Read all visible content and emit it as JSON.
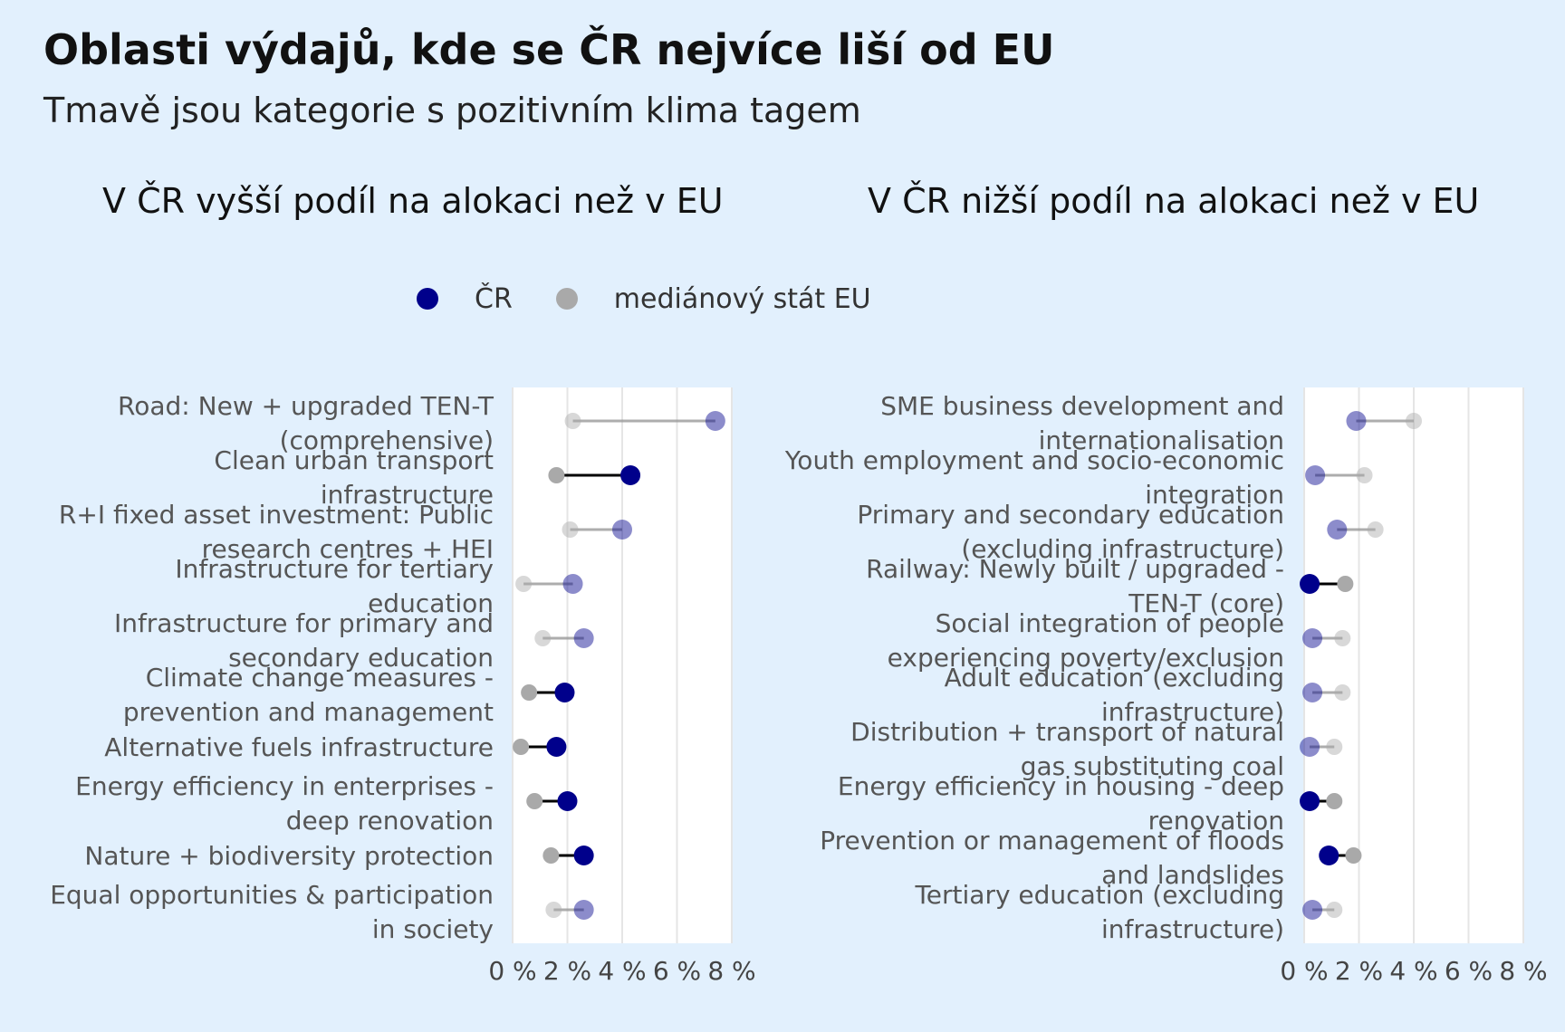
{
  "title": "Oblasti výdajů, kde se ČR nejvíce liší od EU",
  "subtitle": "Tmavě jsou kategorie s pozitivním klima tagem",
  "legend": {
    "cz_label": "ČR",
    "eu_label": "mediánový stát EU",
    "cz_color": "#00008b",
    "eu_color": "#a9a9a9"
  },
  "colors": {
    "background": "#e2f0fd",
    "panel_bg": "#ffffff",
    "grid": "#e5e5e5",
    "cz": "#00008b",
    "eu": "#a9a9a9",
    "segment_climate": "#000000",
    "segment_other": "#999999"
  },
  "chart_data": [
    {
      "type": "dumbbell",
      "title": "V ČR vyšší podíl na alokaci než v EU",
      "xlim": [
        0,
        8
      ],
      "xticks": [
        0,
        2,
        4,
        6,
        8
      ],
      "tick_labels": [
        "0 %",
        "2 %",
        "4 %",
        "6 %",
        "8 %"
      ],
      "grid": true,
      "series_names": [
        "ČR",
        "mediánový stát EU"
      ],
      "categories": [
        {
          "label_lines": [
            "Road: New + upgraded TEN-T",
            "(comprehensive)"
          ],
          "cz": 7.4,
          "eu": 2.2,
          "climate": false
        },
        {
          "label_lines": [
            "Clean urban transport",
            "infrastructure"
          ],
          "cz": 4.3,
          "eu": 1.6,
          "climate": true
        },
        {
          "label_lines": [
            "R+I fixed asset investment: Public",
            "research centres + HEI"
          ],
          "cz": 4.0,
          "eu": 2.1,
          "climate": false
        },
        {
          "label_lines": [
            "Infrastructure for tertiary",
            "education"
          ],
          "cz": 2.2,
          "eu": 0.4,
          "climate": false
        },
        {
          "label_lines": [
            "Infrastructure for primary and",
            "secondary education"
          ],
          "cz": 2.6,
          "eu": 1.1,
          "climate": false
        },
        {
          "label_lines": [
            "Climate change measures -",
            "prevention and management"
          ],
          "cz": 1.9,
          "eu": 0.6,
          "climate": true
        },
        {
          "label_lines": [
            "Alternative fuels infrastructure"
          ],
          "cz": 1.6,
          "eu": 0.3,
          "climate": true
        },
        {
          "label_lines": [
            "Energy efficiency in enterprises -",
            "deep renovation"
          ],
          "cz": 2.0,
          "eu": 0.8,
          "climate": true
        },
        {
          "label_lines": [
            "Nature + biodiversity protection"
          ],
          "cz": 2.6,
          "eu": 1.4,
          "climate": true
        },
        {
          "label_lines": [
            "Equal opportunities & participation",
            "in society"
          ],
          "cz": 2.6,
          "eu": 1.5,
          "climate": false
        }
      ]
    },
    {
      "type": "dumbbell",
      "title": "V ČR nižší podíl na alokaci než v EU",
      "xlim": [
        0,
        8
      ],
      "xticks": [
        0,
        2,
        4,
        6,
        8
      ],
      "tick_labels": [
        "0 %",
        "2 %",
        "4 %",
        "6 %",
        "8 %"
      ],
      "grid": true,
      "series_names": [
        "ČR",
        "mediánový stát EU"
      ],
      "categories": [
        {
          "label_lines": [
            "SME business development and",
            "internationalisation"
          ],
          "cz": 1.9,
          "eu": 4.0,
          "climate": false
        },
        {
          "label_lines": [
            "Youth employment and socio-economic",
            "integration"
          ],
          "cz": 0.4,
          "eu": 2.2,
          "climate": false
        },
        {
          "label_lines": [
            "Primary and secondary education",
            "(excluding infrastructure)"
          ],
          "cz": 1.2,
          "eu": 2.6,
          "climate": false
        },
        {
          "label_lines": [
            "Railway: Newly built / upgraded -",
            "TEN-T (core)"
          ],
          "cz": 0.2,
          "eu": 1.5,
          "climate": true
        },
        {
          "label_lines": [
            "Social integration of people",
            "experiencing poverty/exclusion"
          ],
          "cz": 0.3,
          "eu": 1.4,
          "climate": false
        },
        {
          "label_lines": [
            "Adult education (excluding",
            "infrastructure)"
          ],
          "cz": 0.3,
          "eu": 1.4,
          "climate": false
        },
        {
          "label_lines": [
            "Distribution + transport of natural",
            "gas substituting coal"
          ],
          "cz": 0.2,
          "eu": 1.1,
          "climate": false
        },
        {
          "label_lines": [
            "Energy efficiency in housing - deep",
            "renovation"
          ],
          "cz": 0.2,
          "eu": 1.1,
          "climate": true
        },
        {
          "label_lines": [
            "Prevention or management of floods",
            "and landslides"
          ],
          "cz": 0.9,
          "eu": 1.8,
          "climate": true
        },
        {
          "label_lines": [
            "Tertiary education (excluding",
            "infrastructure)"
          ],
          "cz": 0.3,
          "eu": 1.1,
          "climate": false
        }
      ]
    }
  ]
}
